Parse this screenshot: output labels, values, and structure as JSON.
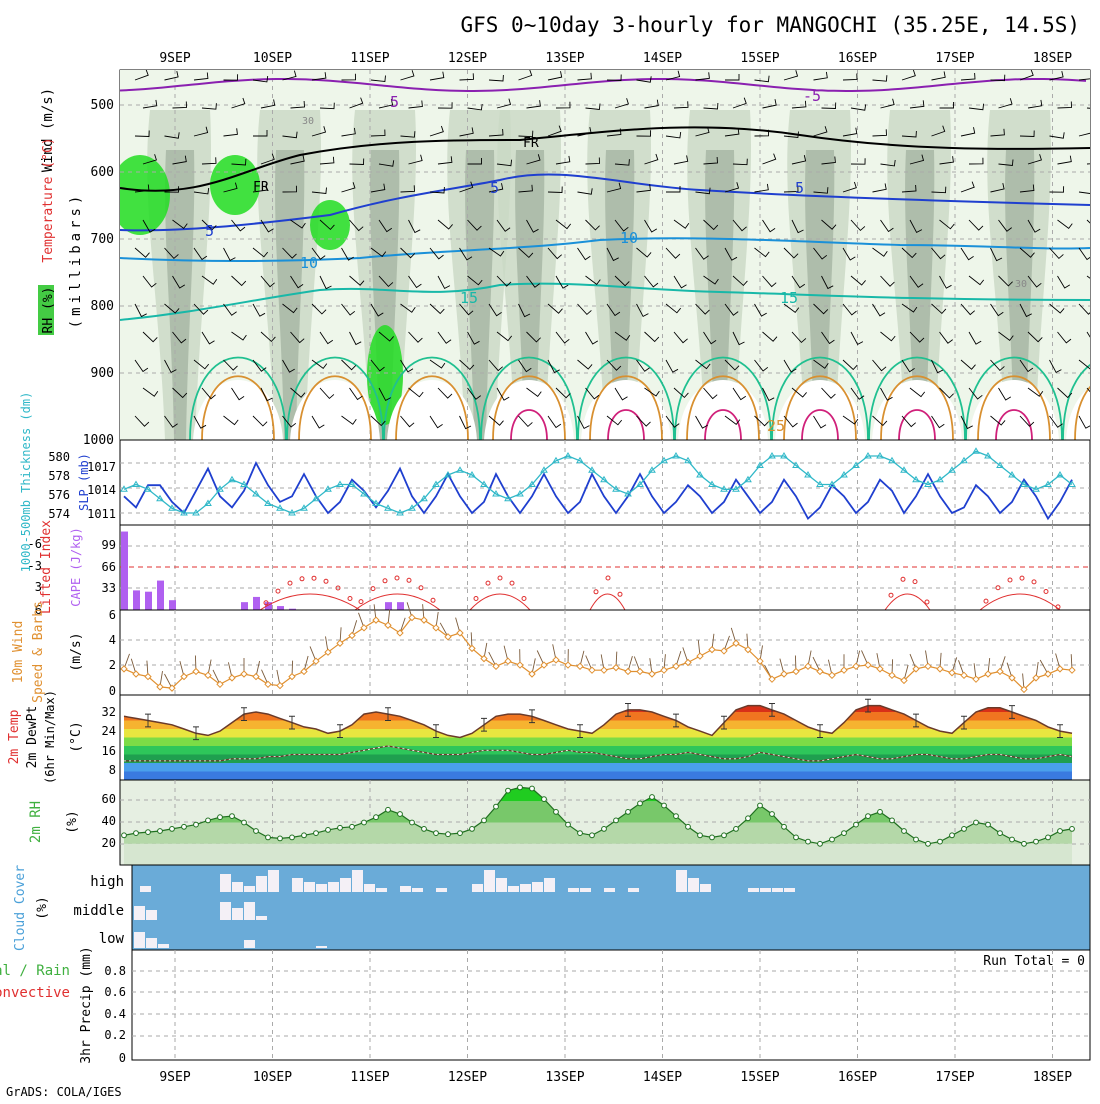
{
  "title": "GFS 0~10day 3-hourly for MANGOCHI (35.25E, 14.5S)",
  "footer": "GrADS: COLA/IGES",
  "colors": {
    "rh_green": "#00cc00",
    "slp": "#1f3fcf",
    "thickness": "#30b8c8",
    "cape": "#b060f0",
    "lifted_index": "#e03030",
    "wind": "#e09030",
    "rh2m": "#40b040",
    "cloud": "#6aabd8",
    "freezing": "#000000"
  },
  "dates": [
    "9SEP",
    "10SEP",
    "11SEP",
    "12SEP",
    "13SEP",
    "14SEP",
    "15SEP",
    "16SEP",
    "17SEP",
    "18SEP"
  ],
  "panels": {
    "upper": {
      "label_wind": "Wind (m/s)",
      "label_temp": "Temperature (°C)",
      "label_rh": "RH (%)",
      "label_units": "(millibars)",
      "yticks": [
        "500",
        "600",
        "700",
        "800",
        "900",
        "1000"
      ],
      "contour_labels": [
        "5",
        "-5",
        "FR",
        "FR",
        "5",
        "5",
        "5",
        "10",
        "10",
        "15",
        "15",
        "25",
        "30",
        "30"
      ]
    },
    "slp": {
      "label_thk": "1000-500mb Thickness (dm)",
      "label_slp": "SLP (mb)",
      "thk_ticks": [
        "580",
        "578",
        "576",
        "574"
      ],
      "slp_ticks": [
        "1017",
        "1014",
        "1011"
      ]
    },
    "cape": {
      "label_li": "Lifted Index",
      "label_cape": "CAPE (J/kg)",
      "li_ticks": [
        "-6",
        "-3",
        "0",
        "3",
        "6"
      ],
      "cape_ticks": [
        "99",
        "66",
        "33"
      ]
    },
    "wind": {
      "label_1": "10m Wind",
      "label_2": "Speed & Barbs",
      "label_3": "(m/s)",
      "ticks": [
        "6",
        "4",
        "2",
        "0"
      ]
    },
    "temp": {
      "label_1": "2m Temp",
      "label_2": "2m DewPt",
      "label_3": "(6hr Min/Max)",
      "label_4": "(°C)",
      "ticks": [
        "32",
        "24",
        "16",
        "8",
        "0"
      ]
    },
    "rh2m": {
      "label_1": "2m RH",
      "label_2": "(%)",
      "ticks": [
        "60",
        "40",
        "20"
      ]
    },
    "cloud": {
      "label": "Cloud Cover",
      "label_units": "(%)",
      "levels": [
        "high",
        "middle",
        "low"
      ]
    },
    "precip": {
      "label_1": "Total / Rain",
      "label_2": "Convective",
      "label_3": "3hr Precip (mm)",
      "run_total": "Run Total = 0",
      "ticks": [
        "0.8",
        "0.6",
        "0.4",
        "0.2",
        "0"
      ]
    }
  },
  "chart_data": [
    {
      "type": "line",
      "title": "1000-500mb Thickness (dm) / SLP (mb)",
      "series": [
        {
          "name": "SLP (mb)",
          "values": [
            1014,
            1012,
            1016,
            1016,
            1013,
            1011,
            1015,
            1019,
            1014,
            1012,
            1015,
            1020,
            1016,
            1013,
            1014,
            1018,
            1014,
            1011,
            1013,
            1017,
            1015,
            1012,
            1015,
            1019,
            1014,
            1011,
            1014,
            1018,
            1014,
            1011,
            1013,
            1018,
            1014,
            1011,
            1014,
            1018,
            1014,
            1011,
            1013,
            1018,
            1014,
            1011,
            1014,
            1018,
            1014,
            1011,
            1013,
            1016,
            1014,
            1011,
            1013,
            1017,
            1014,
            1011,
            1013,
            1017,
            1014,
            1010,
            1012,
            1016,
            1014,
            1011,
            1013,
            1017,
            1015,
            1011,
            1014,
            1018,
            1014,
            1011,
            1012,
            1016,
            1014,
            1011,
            1013,
            1017,
            1014,
            1010,
            1013,
            1017
          ]
        },
        {
          "name": "1000-500mb Thickness (dm)",
          "values": [
            576.5,
            577,
            576.5,
            575.5,
            574.5,
            574,
            574,
            575,
            576.5,
            577.5,
            577,
            576,
            575,
            574.5,
            574,
            574.5,
            575.5,
            576.5,
            577,
            577,
            576,
            575,
            574.5,
            574,
            574.5,
            575.5,
            577,
            578,
            578.5,
            578,
            577,
            576,
            575.5,
            576,
            577,
            578.5,
            579.5,
            580,
            579.5,
            578.5,
            577.5,
            576.5,
            576,
            577,
            578.5,
            579.5,
            580,
            579.5,
            578,
            577,
            576.5,
            576.5,
            577.5,
            579,
            580,
            580,
            579,
            578,
            577,
            577,
            578,
            579,
            580,
            580,
            579.5,
            578.5,
            577.5,
            577,
            577.5,
            578.5,
            579.5,
            580.5,
            580,
            579,
            578,
            577,
            576.5,
            577,
            578,
            577
          ]
        }
      ],
      "xlabel": "",
      "ylabel": ""
    },
    {
      "type": "bar",
      "title": "CAPE (J/kg)",
      "values": [
        120,
        30,
        28,
        45,
        15,
        0,
        0,
        0,
        0,
        0,
        12,
        20,
        12,
        6,
        2,
        0,
        0,
        0,
        0,
        0,
        0,
        0,
        12,
        12,
        0,
        0,
        0,
        0,
        0,
        0,
        0,
        0,
        0,
        0,
        0,
        0,
        0,
        0,
        0,
        0,
        0,
        0,
        0,
        0,
        0,
        0,
        0,
        0,
        0,
        0,
        0,
        0,
        0,
        0,
        0,
        0,
        0,
        0,
        0,
        0,
        0,
        0,
        0,
        0,
        0,
        0,
        0,
        0,
        0,
        0,
        0,
        0,
        0,
        0,
        0,
        0,
        0,
        0,
        0,
        0
      ]
    },
    {
      "type": "line",
      "title": "10m Wind Speed (m/s)",
      "values": [
        1.8,
        1.4,
        1.2,
        0.4,
        0.3,
        1.2,
        1.6,
        1.3,
        0.6,
        1.1,
        1.4,
        1.2,
        0.6,
        0.5,
        1.2,
        1.6,
        2.4,
        3.1,
        3.8,
        4.4,
        5.0,
        5.6,
        5.2,
        4.6,
        5.8,
        5.6,
        5.0,
        4.3,
        4.6,
        3.4,
        2.6,
        2.0,
        2.4,
        2.1,
        1.4,
        2.1,
        2.5,
        2.1,
        2.0,
        1.7,
        1.7,
        1.9,
        1.6,
        1.6,
        1.4,
        1.7,
        2.0,
        2.3,
        2.8,
        3.3,
        3.2,
        3.8,
        3.3,
        2.4,
        1.0,
        1.4,
        1.6,
        2.0,
        1.6,
        1.3,
        1.7,
        2.0,
        2.1,
        1.8,
        1.3,
        0.9,
        1.8,
        2.0,
        1.8,
        1.5,
        1.3,
        1.0,
        1.4,
        1.6,
        1.1,
        0.2,
        1.1,
        1.4,
        1.8,
        1.7
      ],
      "ylim": [
        0,
        6
      ]
    },
    {
      "type": "area",
      "title": "2m Temp / 2m DewPt (°C)",
      "series": [
        {
          "name": "2m Temp",
          "values": [
            30,
            29,
            28,
            27,
            26,
            24,
            22,
            21,
            23,
            27,
            31,
            32,
            31,
            29,
            27,
            25,
            24,
            22,
            23,
            26,
            31,
            32,
            31,
            30,
            28,
            26,
            23,
            21,
            20,
            22,
            26,
            30,
            31,
            31,
            30,
            28,
            26,
            24,
            23,
            22,
            26,
            31,
            33,
            33,
            32,
            30,
            28,
            25,
            23,
            21,
            27,
            33,
            35,
            35,
            33,
            31,
            28,
            25,
            23,
            22,
            27,
            33,
            35,
            35,
            33,
            31,
            28,
            25,
            23,
            22,
            27,
            32,
            34,
            34,
            32,
            30,
            28,
            25,
            23,
            22
          ]
        },
        {
          "name": "2m DewPt",
          "values": [
            9,
            9,
            9,
            9,
            9,
            9,
            9,
            9,
            9,
            10,
            10,
            10,
            11,
            11,
            12,
            12,
            12,
            12,
            12,
            13,
            14,
            15,
            16,
            15,
            14,
            13,
            12,
            12,
            12,
            13,
            14,
            14,
            14,
            13,
            12,
            12,
            13,
            14,
            13,
            13,
            12,
            11,
            10,
            10,
            11,
            12,
            12,
            13,
            12,
            11,
            10,
            10,
            11,
            13,
            12,
            11,
            10,
            9,
            9,
            10,
            11,
            12,
            11,
            10,
            10,
            11,
            12,
            12,
            11,
            10,
            10,
            11,
            12,
            12,
            11,
            10,
            10,
            11,
            12,
            11
          ]
        }
      ],
      "ylim": [
        0,
        40
      ]
    },
    {
      "type": "area",
      "title": "2m RH (%)",
      "values": [
        28,
        30,
        31,
        32,
        34,
        36,
        38,
        42,
        45,
        46,
        40,
        32,
        26,
        25,
        26,
        28,
        30,
        33,
        35,
        36,
        40,
        45,
        52,
        48,
        40,
        34,
        30,
        29,
        30,
        34,
        42,
        55,
        70,
        73,
        72,
        62,
        50,
        38,
        30,
        28,
        34,
        42,
        50,
        58,
        64,
        56,
        46,
        36,
        28,
        26,
        28,
        34,
        44,
        56,
        48,
        36,
        26,
        22,
        20,
        24,
        30,
        38,
        46,
        50,
        42,
        32,
        24,
        20,
        22,
        28,
        34,
        40,
        38,
        30,
        24,
        20,
        22,
        26,
        32,
        34
      ],
      "ylim": [
        0,
        80
      ]
    },
    {
      "type": "bar",
      "title": "3hr Precip (mm)",
      "values": [
        0,
        0,
        0,
        0,
        0,
        0,
        0,
        0,
        0,
        0,
        0,
        0,
        0,
        0,
        0,
        0,
        0,
        0,
        0,
        0,
        0,
        0,
        0,
        0,
        0,
        0,
        0,
        0,
        0,
        0,
        0,
        0,
        0,
        0,
        0,
        0,
        0,
        0,
        0,
        0,
        0,
        0,
        0,
        0,
        0,
        0,
        0,
        0,
        0,
        0,
        0,
        0,
        0,
        0,
        0,
        0,
        0,
        0,
        0,
        0,
        0,
        0,
        0,
        0,
        0,
        0,
        0,
        0,
        0,
        0,
        0,
        0,
        0,
        0,
        0,
        0,
        0,
        0,
        0,
        0
      ],
      "ylim": [
        0,
        1
      ]
    }
  ]
}
